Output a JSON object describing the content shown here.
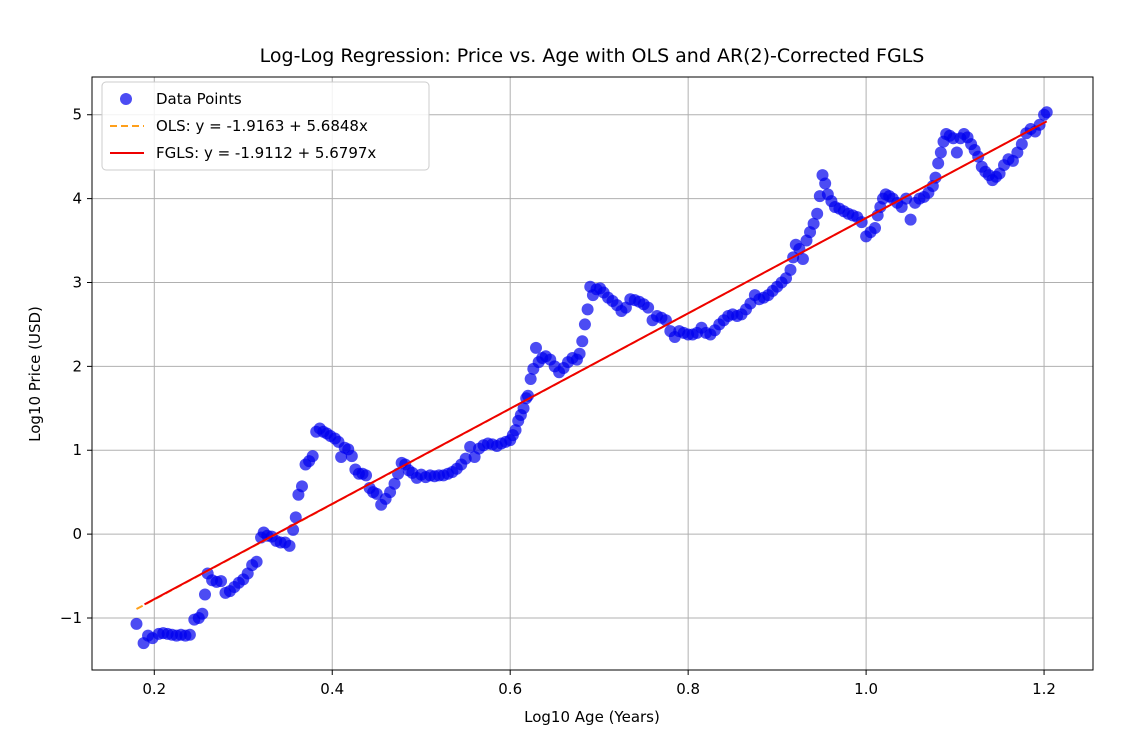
{
  "chart_data": {
    "type": "scatter",
    "title": "Log-Log Regression: Price vs. Age with OLS and AR(2)-Corrected FGLS",
    "xlabel": "Log10 Age (Years)",
    "ylabel": "Log10 Price (USD)",
    "xlim": [
      0.13,
      1.255
    ],
    "ylim": [
      -1.62,
      5.45
    ],
    "x_ticks": [
      0.2,
      0.4,
      0.6,
      0.8,
      1.0,
      1.2
    ],
    "x_tick_labels": [
      "0.2",
      "0.4",
      "0.6",
      "0.8",
      "1.0",
      "1.2"
    ],
    "y_ticks": [
      -1,
      0,
      1,
      2,
      3,
      4,
      5
    ],
    "y_tick_labels": [
      "−1",
      "0",
      "1",
      "2",
      "3",
      "4",
      "5"
    ],
    "grid": true,
    "legend_position": "top-left",
    "legend": [
      "Data Points",
      "OLS: y = -1.9163 + 5.6848x",
      "FGLS: y = -1.9112 + 5.6797x"
    ],
    "scatter": {
      "name": "Data Points",
      "color": "#0000ee",
      "points": [
        [
          0.18,
          -1.07
        ],
        [
          0.188,
          -1.3
        ],
        [
          0.193,
          -1.21
        ],
        [
          0.198,
          -1.24
        ],
        [
          0.205,
          -1.19
        ],
        [
          0.21,
          -1.18
        ],
        [
          0.215,
          -1.19
        ],
        [
          0.22,
          -1.2
        ],
        [
          0.225,
          -1.21
        ],
        [
          0.23,
          -1.2
        ],
        [
          0.235,
          -1.21
        ],
        [
          0.24,
          -1.2
        ],
        [
          0.245,
          -1.02
        ],
        [
          0.25,
          -1.0
        ],
        [
          0.254,
          -0.95
        ],
        [
          0.257,
          -0.72
        ],
        [
          0.26,
          -0.47
        ],
        [
          0.265,
          -0.55
        ],
        [
          0.27,
          -0.57
        ],
        [
          0.275,
          -0.56
        ],
        [
          0.28,
          -0.7
        ],
        [
          0.285,
          -0.68
        ],
        [
          0.29,
          -0.63
        ],
        [
          0.295,
          -0.58
        ],
        [
          0.3,
          -0.54
        ],
        [
          0.305,
          -0.47
        ],
        [
          0.31,
          -0.37
        ],
        [
          0.315,
          -0.33
        ],
        [
          0.32,
          -0.04
        ],
        [
          0.323,
          0.02
        ],
        [
          0.327,
          -0.02
        ],
        [
          0.332,
          -0.03
        ],
        [
          0.337,
          -0.08
        ],
        [
          0.342,
          -0.1
        ],
        [
          0.347,
          -0.1
        ],
        [
          0.352,
          -0.14
        ],
        [
          0.356,
          0.05
        ],
        [
          0.359,
          0.2
        ],
        [
          0.362,
          0.47
        ],
        [
          0.366,
          0.57
        ],
        [
          0.37,
          0.83
        ],
        [
          0.374,
          0.87
        ],
        [
          0.378,
          0.93
        ],
        [
          0.382,
          1.22
        ],
        [
          0.386,
          1.26
        ],
        [
          0.39,
          1.22
        ],
        [
          0.394,
          1.2
        ],
        [
          0.398,
          1.17
        ],
        [
          0.403,
          1.14
        ],
        [
          0.407,
          1.1
        ],
        [
          0.41,
          0.92
        ],
        [
          0.414,
          1.03
        ],
        [
          0.418,
          1.01
        ],
        [
          0.422,
          0.93
        ],
        [
          0.426,
          0.77
        ],
        [
          0.43,
          0.72
        ],
        [
          0.434,
          0.72
        ],
        [
          0.438,
          0.7
        ],
        [
          0.442,
          0.55
        ],
        [
          0.446,
          0.5
        ],
        [
          0.45,
          0.48
        ],
        [
          0.455,
          0.35
        ],
        [
          0.46,
          0.42
        ],
        [
          0.465,
          0.5
        ],
        [
          0.47,
          0.6
        ],
        [
          0.474,
          0.72
        ],
        [
          0.478,
          0.85
        ],
        [
          0.482,
          0.83
        ],
        [
          0.486,
          0.76
        ],
        [
          0.49,
          0.73
        ],
        [
          0.495,
          0.67
        ],
        [
          0.5,
          0.71
        ],
        [
          0.505,
          0.68
        ],
        [
          0.51,
          0.7
        ],
        [
          0.515,
          0.69
        ],
        [
          0.52,
          0.7
        ],
        [
          0.525,
          0.7
        ],
        [
          0.53,
          0.72
        ],
        [
          0.535,
          0.74
        ],
        [
          0.54,
          0.78
        ],
        [
          0.545,
          0.83
        ],
        [
          0.55,
          0.9
        ],
        [
          0.555,
          1.04
        ],
        [
          0.56,
          0.92
        ],
        [
          0.565,
          1.02
        ],
        [
          0.57,
          1.06
        ],
        [
          0.575,
          1.08
        ],
        [
          0.58,
          1.07
        ],
        [
          0.585,
          1.05
        ],
        [
          0.59,
          1.08
        ],
        [
          0.595,
          1.1
        ],
        [
          0.6,
          1.12
        ],
        [
          0.603,
          1.18
        ],
        [
          0.606,
          1.24
        ],
        [
          0.609,
          1.35
        ],
        [
          0.612,
          1.42
        ],
        [
          0.615,
          1.5
        ],
        [
          0.618,
          1.62
        ],
        [
          0.62,
          1.65
        ],
        [
          0.623,
          1.85
        ],
        [
          0.626,
          1.97
        ],
        [
          0.629,
          2.22
        ],
        [
          0.632,
          2.05
        ],
        [
          0.636,
          2.1
        ],
        [
          0.64,
          2.12
        ],
        [
          0.645,
          2.08
        ],
        [
          0.65,
          2.0
        ],
        [
          0.655,
          1.93
        ],
        [
          0.66,
          1.98
        ],
        [
          0.665,
          2.05
        ],
        [
          0.67,
          2.1
        ],
        [
          0.675,
          2.08
        ],
        [
          0.678,
          2.15
        ],
        [
          0.681,
          2.3
        ],
        [
          0.684,
          2.5
        ],
        [
          0.687,
          2.68
        ],
        [
          0.69,
          2.95
        ],
        [
          0.693,
          2.85
        ],
        [
          0.697,
          2.92
        ],
        [
          0.701,
          2.93
        ],
        [
          0.705,
          2.88
        ],
        [
          0.71,
          2.82
        ],
        [
          0.715,
          2.78
        ],
        [
          0.72,
          2.73
        ],
        [
          0.725,
          2.66
        ],
        [
          0.73,
          2.7
        ],
        [
          0.735,
          2.8
        ],
        [
          0.74,
          2.79
        ],
        [
          0.745,
          2.77
        ],
        [
          0.75,
          2.74
        ],
        [
          0.755,
          2.7
        ],
        [
          0.76,
          2.55
        ],
        [
          0.765,
          2.6
        ],
        [
          0.77,
          2.58
        ],
        [
          0.775,
          2.55
        ],
        [
          0.78,
          2.42
        ],
        [
          0.785,
          2.35
        ],
        [
          0.79,
          2.42
        ],
        [
          0.795,
          2.4
        ],
        [
          0.8,
          2.38
        ],
        [
          0.805,
          2.38
        ],
        [
          0.81,
          2.4
        ],
        [
          0.815,
          2.46
        ],
        [
          0.82,
          2.4
        ],
        [
          0.825,
          2.38
        ],
        [
          0.83,
          2.43
        ],
        [
          0.835,
          2.5
        ],
        [
          0.84,
          2.55
        ],
        [
          0.845,
          2.6
        ],
        [
          0.85,
          2.62
        ],
        [
          0.855,
          2.6
        ],
        [
          0.86,
          2.62
        ],
        [
          0.865,
          2.68
        ],
        [
          0.87,
          2.75
        ],
        [
          0.875,
          2.85
        ],
        [
          0.88,
          2.8
        ],
        [
          0.885,
          2.82
        ],
        [
          0.89,
          2.85
        ],
        [
          0.895,
          2.9
        ],
        [
          0.9,
          2.95
        ],
        [
          0.905,
          3.0
        ],
        [
          0.91,
          3.05
        ],
        [
          0.915,
          3.15
        ],
        [
          0.918,
          3.3
        ],
        [
          0.921,
          3.45
        ],
        [
          0.925,
          3.4
        ],
        [
          0.929,
          3.28
        ],
        [
          0.933,
          3.5
        ],
        [
          0.937,
          3.6
        ],
        [
          0.941,
          3.7
        ],
        [
          0.945,
          3.82
        ],
        [
          0.948,
          4.03
        ],
        [
          0.951,
          4.28
        ],
        [
          0.954,
          4.18
        ],
        [
          0.957,
          4.05
        ],
        [
          0.961,
          3.97
        ],
        [
          0.965,
          3.9
        ],
        [
          0.97,
          3.88
        ],
        [
          0.975,
          3.85
        ],
        [
          0.98,
          3.82
        ],
        [
          0.985,
          3.8
        ],
        [
          0.99,
          3.78
        ],
        [
          0.995,
          3.72
        ],
        [
          1.0,
          3.55
        ],
        [
          1.005,
          3.6
        ],
        [
          1.01,
          3.65
        ],
        [
          1.013,
          3.8
        ],
        [
          1.016,
          3.9
        ],
        [
          1.019,
          4.0
        ],
        [
          1.022,
          4.05
        ],
        [
          1.026,
          4.03
        ],
        [
          1.03,
          4.0
        ],
        [
          1.035,
          3.95
        ],
        [
          1.04,
          3.9
        ],
        [
          1.045,
          4.0
        ],
        [
          1.05,
          3.75
        ],
        [
          1.055,
          3.95
        ],
        [
          1.06,
          4.0
        ],
        [
          1.065,
          4.02
        ],
        [
          1.07,
          4.07
        ],
        [
          1.075,
          4.15
        ],
        [
          1.078,
          4.25
        ],
        [
          1.081,
          4.42
        ],
        [
          1.084,
          4.55
        ],
        [
          1.087,
          4.68
        ],
        [
          1.09,
          4.77
        ],
        [
          1.094,
          4.75
        ],
        [
          1.098,
          4.72
        ],
        [
          1.102,
          4.55
        ],
        [
          1.106,
          4.72
        ],
        [
          1.11,
          4.77
        ],
        [
          1.114,
          4.73
        ],
        [
          1.118,
          4.65
        ],
        [
          1.122,
          4.58
        ],
        [
          1.126,
          4.5
        ],
        [
          1.13,
          4.38
        ],
        [
          1.134,
          4.32
        ],
        [
          1.138,
          4.28
        ],
        [
          1.142,
          4.22
        ],
        [
          1.146,
          4.26
        ],
        [
          1.15,
          4.3
        ],
        [
          1.155,
          4.4
        ],
        [
          1.16,
          4.47
        ],
        [
          1.165,
          4.45
        ],
        [
          1.17,
          4.55
        ],
        [
          1.175,
          4.65
        ],
        [
          1.18,
          4.78
        ],
        [
          1.185,
          4.83
        ],
        [
          1.19,
          4.8
        ],
        [
          1.195,
          4.88
        ],
        [
          1.2,
          5.0
        ],
        [
          1.203,
          5.03
        ]
      ]
    },
    "lines": [
      {
        "name": "OLS: y = -1.9163 + 5.6848x",
        "color": "#ff9f1a",
        "dash": true,
        "intercept": -1.9163,
        "slope": 5.6848,
        "x_range": [
          0.18,
          1.203
        ]
      },
      {
        "name": "FGLS: y = -1.9112 + 5.6797x",
        "color": "#ee0000",
        "dash": false,
        "intercept": -1.9112,
        "slope": 5.6797,
        "x_range": [
          0.189,
          1.203
        ]
      }
    ]
  }
}
